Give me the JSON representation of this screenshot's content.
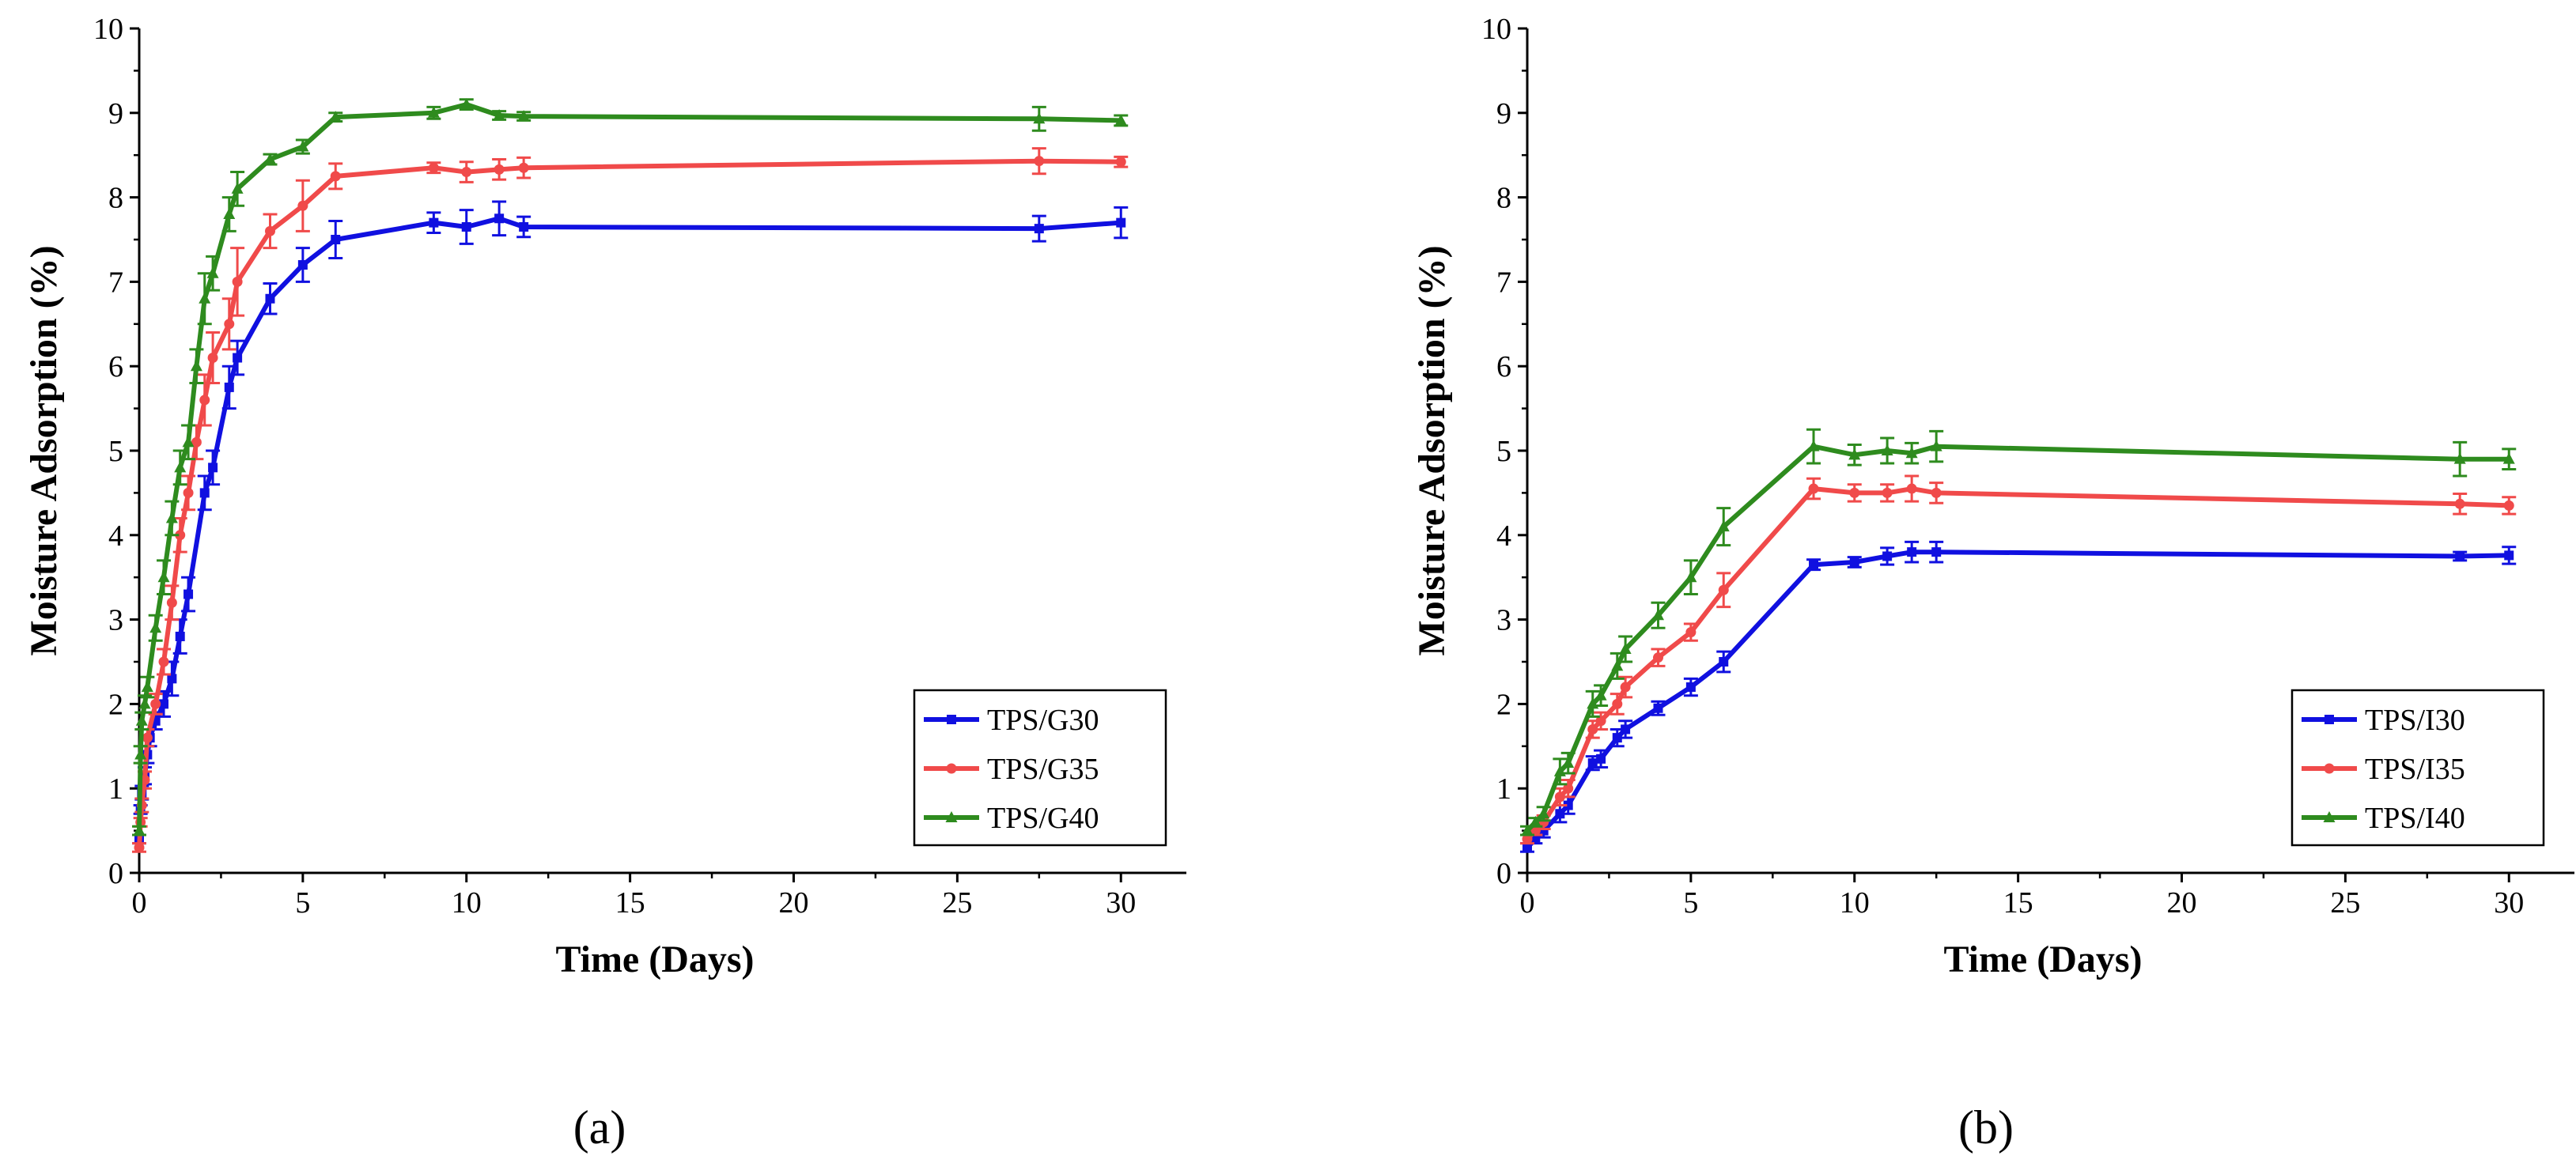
{
  "chart_data": [
    {
      "type": "line",
      "caption": "(a)",
      "xlabel": "Time (Days)",
      "ylabel": "Moisture Adsorption (%)",
      "xlim": [
        0,
        32
      ],
      "ylim": [
        0,
        10
      ],
      "xticks": [
        "0",
        "5",
        "10",
        "15",
        "20",
        "25",
        "30"
      ],
      "yticks": [
        "0",
        "1",
        "2",
        "3",
        "4",
        "5",
        "6",
        "7",
        "8",
        "9",
        "10"
      ],
      "legend_position": "bottom-right",
      "series": [
        {
          "name": "TPS/G30",
          "color": "#1010e0",
          "marker": "square",
          "x": [
            0,
            0.04,
            0.08,
            0.17,
            0.25,
            0.33,
            0.5,
            0.75,
            1,
            1.25,
            1.5,
            2,
            2.25,
            2.75,
            3,
            4,
            5,
            6,
            9,
            10,
            11,
            11.75,
            27.5,
            30
          ],
          "y": [
            0.4,
            0.75,
            0.95,
            1.15,
            1.4,
            1.6,
            1.8,
            2.0,
            2.3,
            2.8,
            3.3,
            4.5,
            4.8,
            5.75,
            6.1,
            6.8,
            7.2,
            7.5,
            7.7,
            7.65,
            7.75,
            7.65,
            7.63,
            7.7
          ],
          "err": [
            0.05,
            0.05,
            0.08,
            0.1,
            0.1,
            0.1,
            0.1,
            0.15,
            0.2,
            0.2,
            0.2,
            0.2,
            0.2,
            0.25,
            0.2,
            0.18,
            0.2,
            0.22,
            0.12,
            0.2,
            0.2,
            0.12,
            0.15,
            0.18
          ]
        },
        {
          "name": "TPS/G35",
          "color": "#f04a4a",
          "marker": "circle",
          "x": [
            0,
            0.04,
            0.08,
            0.17,
            0.25,
            0.5,
            0.75,
            1,
            1.25,
            1.5,
            1.75,
            2,
            2.25,
            2.75,
            3,
            4,
            5,
            6,
            9,
            10,
            11,
            11.75,
            27.5,
            30
          ],
          "y": [
            0.3,
            0.6,
            0.8,
            1.1,
            1.6,
            2.0,
            2.5,
            3.2,
            4.0,
            4.5,
            5.1,
            5.6,
            6.1,
            6.5,
            7.0,
            7.6,
            7.9,
            8.25,
            8.35,
            8.3,
            8.33,
            8.35,
            8.43,
            8.42
          ],
          "err": [
            0.05,
            0.05,
            0.08,
            0.1,
            0.1,
            0.12,
            0.15,
            0.2,
            0.2,
            0.2,
            0.2,
            0.3,
            0.3,
            0.3,
            0.4,
            0.2,
            0.3,
            0.15,
            0.06,
            0.12,
            0.12,
            0.12,
            0.15,
            0.06
          ]
        },
        {
          "name": "TPS/G40",
          "color": "#2e8b1e",
          "marker": "triangle",
          "x": [
            0,
            0.04,
            0.08,
            0.17,
            0.25,
            0.5,
            0.75,
            1,
            1.25,
            1.5,
            1.75,
            2,
            2.25,
            2.75,
            3,
            4,
            5,
            6,
            9,
            10,
            11,
            11.75,
            27.5,
            30
          ],
          "y": [
            0.5,
            1.4,
            1.8,
            2.0,
            2.2,
            2.9,
            3.5,
            4.2,
            4.8,
            5.1,
            6.0,
            6.8,
            7.1,
            7.8,
            8.1,
            8.45,
            8.6,
            8.95,
            9.0,
            9.1,
            8.97,
            8.96,
            8.93,
            8.91
          ],
          "err": [
            0.05,
            0.1,
            0.1,
            0.1,
            0.12,
            0.15,
            0.2,
            0.2,
            0.2,
            0.2,
            0.2,
            0.3,
            0.2,
            0.2,
            0.2,
            0.06,
            0.08,
            0.05,
            0.07,
            0.06,
            0.05,
            0.05,
            0.14,
            0.06
          ]
        }
      ]
    },
    {
      "type": "line",
      "caption": "(b)",
      "xlabel": "Time (Days)",
      "ylabel": "Moisture Adsorption (%)",
      "xlim": [
        0,
        32
      ],
      "ylim": [
        0,
        10
      ],
      "xticks": [
        "0",
        "5",
        "10",
        "15",
        "20",
        "25",
        "30"
      ],
      "yticks": [
        "0",
        "1",
        "2",
        "3",
        "4",
        "5",
        "6",
        "7",
        "8",
        "9",
        "10"
      ],
      "legend_position": "bottom-right",
      "series": [
        {
          "name": "TPS/I30",
          "color": "#1010e0",
          "marker": "square",
          "x": [
            0,
            0.25,
            0.5,
            1,
            1.25,
            2,
            2.25,
            2.75,
            3,
            4,
            5,
            6,
            8.75,
            10,
            11,
            11.75,
            12.5,
            28.5,
            30
          ],
          "y": [
            0.3,
            0.4,
            0.5,
            0.7,
            0.8,
            1.3,
            1.35,
            1.6,
            1.7,
            1.95,
            2.2,
            2.5,
            3.65,
            3.68,
            3.75,
            3.8,
            3.8,
            3.75,
            3.76
          ],
          "err": [
            0.05,
            0.05,
            0.08,
            0.1,
            0.1,
            0.08,
            0.1,
            0.1,
            0.1,
            0.08,
            0.1,
            0.12,
            0.06,
            0.06,
            0.1,
            0.12,
            0.12,
            0.05,
            0.1
          ]
        },
        {
          "name": "TPS/I35",
          "color": "#f04a4a",
          "marker": "circle",
          "x": [
            0,
            0.25,
            0.5,
            1,
            1.25,
            2,
            2.25,
            2.75,
            3,
            4,
            5,
            6,
            8.75,
            10,
            11,
            11.75,
            12.5,
            28.5,
            30
          ],
          "y": [
            0.4,
            0.5,
            0.6,
            0.9,
            1.0,
            1.7,
            1.8,
            2.0,
            2.2,
            2.55,
            2.85,
            3.35,
            4.55,
            4.5,
            4.5,
            4.55,
            4.5,
            4.37,
            4.35
          ],
          "err": [
            0.05,
            0.05,
            0.08,
            0.1,
            0.1,
            0.1,
            0.1,
            0.12,
            0.12,
            0.1,
            0.1,
            0.2,
            0.12,
            0.1,
            0.1,
            0.15,
            0.12,
            0.12,
            0.1
          ]
        },
        {
          "name": "TPS/I40",
          "color": "#2e8b1e",
          "marker": "triangle",
          "x": [
            0,
            0.25,
            0.5,
            1,
            1.25,
            2,
            2.25,
            2.75,
            3,
            4,
            5,
            6,
            8.75,
            10,
            11,
            11.75,
            12.5,
            28.5,
            30
          ],
          "y": [
            0.5,
            0.6,
            0.7,
            1.2,
            1.3,
            2.0,
            2.1,
            2.45,
            2.65,
            3.05,
            3.5,
            4.1,
            5.05,
            4.95,
            5.0,
            4.97,
            5.05,
            4.9,
            4.9
          ],
          "err": [
            0.05,
            0.05,
            0.08,
            0.15,
            0.12,
            0.15,
            0.12,
            0.15,
            0.15,
            0.15,
            0.2,
            0.22,
            0.2,
            0.12,
            0.15,
            0.12,
            0.18,
            0.2,
            0.12
          ]
        }
      ]
    }
  ]
}
